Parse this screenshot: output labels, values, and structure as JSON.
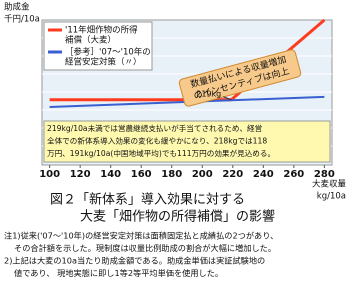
{
  "chart_data": {
    "type": "line",
    "y_label": [
      "助成金",
      "千円/10a"
    ],
    "x_label": [
      "大麦収量",
      "kg/10a"
    ],
    "xlim": [
      95,
      285
    ],
    "xticks": [
      100,
      120,
      140,
      160,
      180,
      200,
      220,
      240,
      260,
      280
    ],
    "ylim": [
      0,
      100
    ],
    "series": [
      {
        "name": [
          "'11年畑作物の所得",
          "補償（大麦）"
        ],
        "color": "#ff3b1f",
        "x": [
          100,
          219,
          280
        ],
        "values": [
          45,
          45,
          100
        ]
      },
      {
        "name": [
          "［参考］'07～'10年の",
          "経営安定対策（〃）"
        ],
        "color": "#3a5fd0",
        "x": [
          100,
          280
        ],
        "values": [
          40,
          47
        ]
      }
    ],
    "annotations": {
      "threshold": "219kg",
      "callout": [
        "数量払いによる収量増加",
        "のインセンティブは向上"
      ],
      "box": [
        "219kg/10a未満では営農継続支払いが手当てされるため、経営",
        "全体での新体系導入効果の変化も緩やかになり、218kgでは118",
        "万円、191kg/10a(中国地域平均)でも111万円の効果が見込める。"
      ]
    },
    "caption": [
      "図２「新体系」導入効果に対する",
      "大麦「畑作物の所得補償」の影響"
    ],
    "notes": [
      "注1)従来('07～'10年)の経営安定対策は面積固定払と成績払の2つがあり、",
      "その合計額を示した。現制度は収量比例助成の割合が大幅に増加した。",
      "2)上記は大麦の10a当たり助成金額である。助成金単価は実証試験地の",
      "値であり、 現地実態に即し1等2等平均単価を使用した。"
    ]
  }
}
